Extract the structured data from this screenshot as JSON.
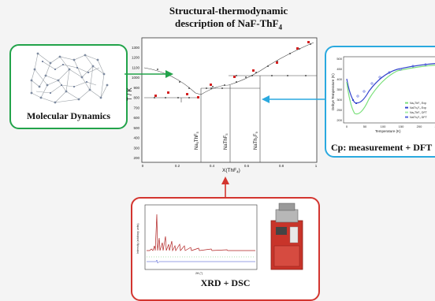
{
  "title": {
    "line1": "Structural-thermodynamic",
    "line2": "description of NaF-ThF"
  },
  "panels": {
    "md_label": "Molecular Dynamics",
    "cp_label": "Cp: measurement + DFT",
    "xrd_label": "XRD + DSC"
  },
  "phase_diagram": {
    "ylabel": "T / K",
    "xlabel": "X(ThF",
    "xlabel_sub": "4",
    "xticks": [
      "0",
      "0.2",
      "0.4",
      "0.6",
      "0.8",
      "1"
    ],
    "yticks": [
      "200",
      "300",
      "400",
      "500",
      "600",
      "700",
      "800",
      "900",
      "1000",
      "1100",
      "1200",
      "1300"
    ],
    "compounds": [
      {
        "base": "Na",
        "sub1": "3",
        "mid": "ThF",
        "sub2": "5"
      },
      {
        "base": "NaThF",
        "sub1": "5",
        "mid": "",
        "sub2": ""
      },
      {
        "base": "NaTh",
        "sub1": "2",
        "mid": "F",
        "sub2": "9"
      }
    ]
  },
  "cp_plot": {
    "ylabel": "Debye Temperature (K)",
    "xlabel": "Temperature (K)",
    "yticks": [
      "500",
      "450",
      "400",
      "350",
      "300",
      "250",
      "200"
    ],
    "xticks": [
      "0",
      "50",
      "100",
      "150",
      "200",
      "250"
    ],
    "legend": [
      "Na₃ThF₅ Exp",
      "NaTh₂F₉ Exp",
      "Na₃ThF₅ DFT",
      "NaTh₂F₉ DFT"
    ]
  },
  "xrd_plot": {
    "ylabel": "Intensity (arbitrary units)",
    "xlabel": "2θ (°)"
  },
  "colors": {
    "md_border": "#22a34a",
    "cp_border": "#2aa9df",
    "xrd_border": "#d3352f",
    "arrow_green": "#22a34a",
    "arrow_blue": "#2aa9df",
    "arrow_red": "#d3352f"
  }
}
